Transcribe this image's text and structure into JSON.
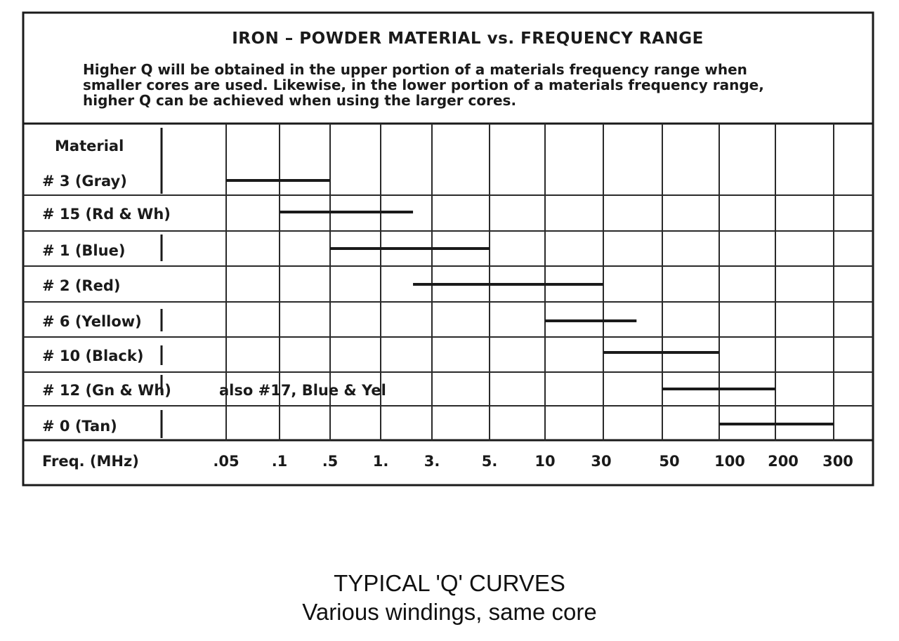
{
  "chart_data": {
    "type": "range-table",
    "title": "IRON – POWDER MATERIAL vs. FREQUENCY RANGE",
    "note_lines": [
      "Higher Q will be obtained in the upper portion of a materials frequency range when",
      "smaller cores are used.  Likewise, in the lower portion of a materials frequency range,",
      "higher  Q  can be achieved when using the larger cores."
    ],
    "row_header": "Material",
    "xlabel": "Freq. (MHz)",
    "x_ticks": [
      ".05",
      ".1",
      ".5",
      "1.",
      "3.",
      "5.",
      "10",
      "30",
      "50",
      "100",
      "200",
      "300"
    ],
    "materials": [
      {
        "label": "# 3  (Gray)",
        "annotation": "",
        "start": 0.05,
        "end": 0.5
      },
      {
        "label": "# 15 (Rd & Wh)",
        "annotation": "",
        "start": 0.1,
        "end": 2
      },
      {
        "label": "# 1  (Blue)",
        "annotation": "",
        "start": 0.5,
        "end": 5
      },
      {
        "label": "# 2  (Red)",
        "annotation": "",
        "start": 2,
        "end": 30
      },
      {
        "label": "# 6 (Yellow)",
        "annotation": "",
        "start": 10,
        "end": 40
      },
      {
        "label": "# 10  (Black)",
        "annotation": "",
        "start": 30,
        "end": 100
      },
      {
        "label": "# 12 (Gn & Wh)",
        "annotation": "also #17,  Blue & Yel",
        "start": 50,
        "end": 200
      },
      {
        "label": "# 0  (Tan)",
        "annotation": "",
        "start": 100,
        "end": 300
      }
    ]
  },
  "caption": {
    "line1": "TYPICAL 'Q' CURVES",
    "line2": "Various windings, same core"
  }
}
